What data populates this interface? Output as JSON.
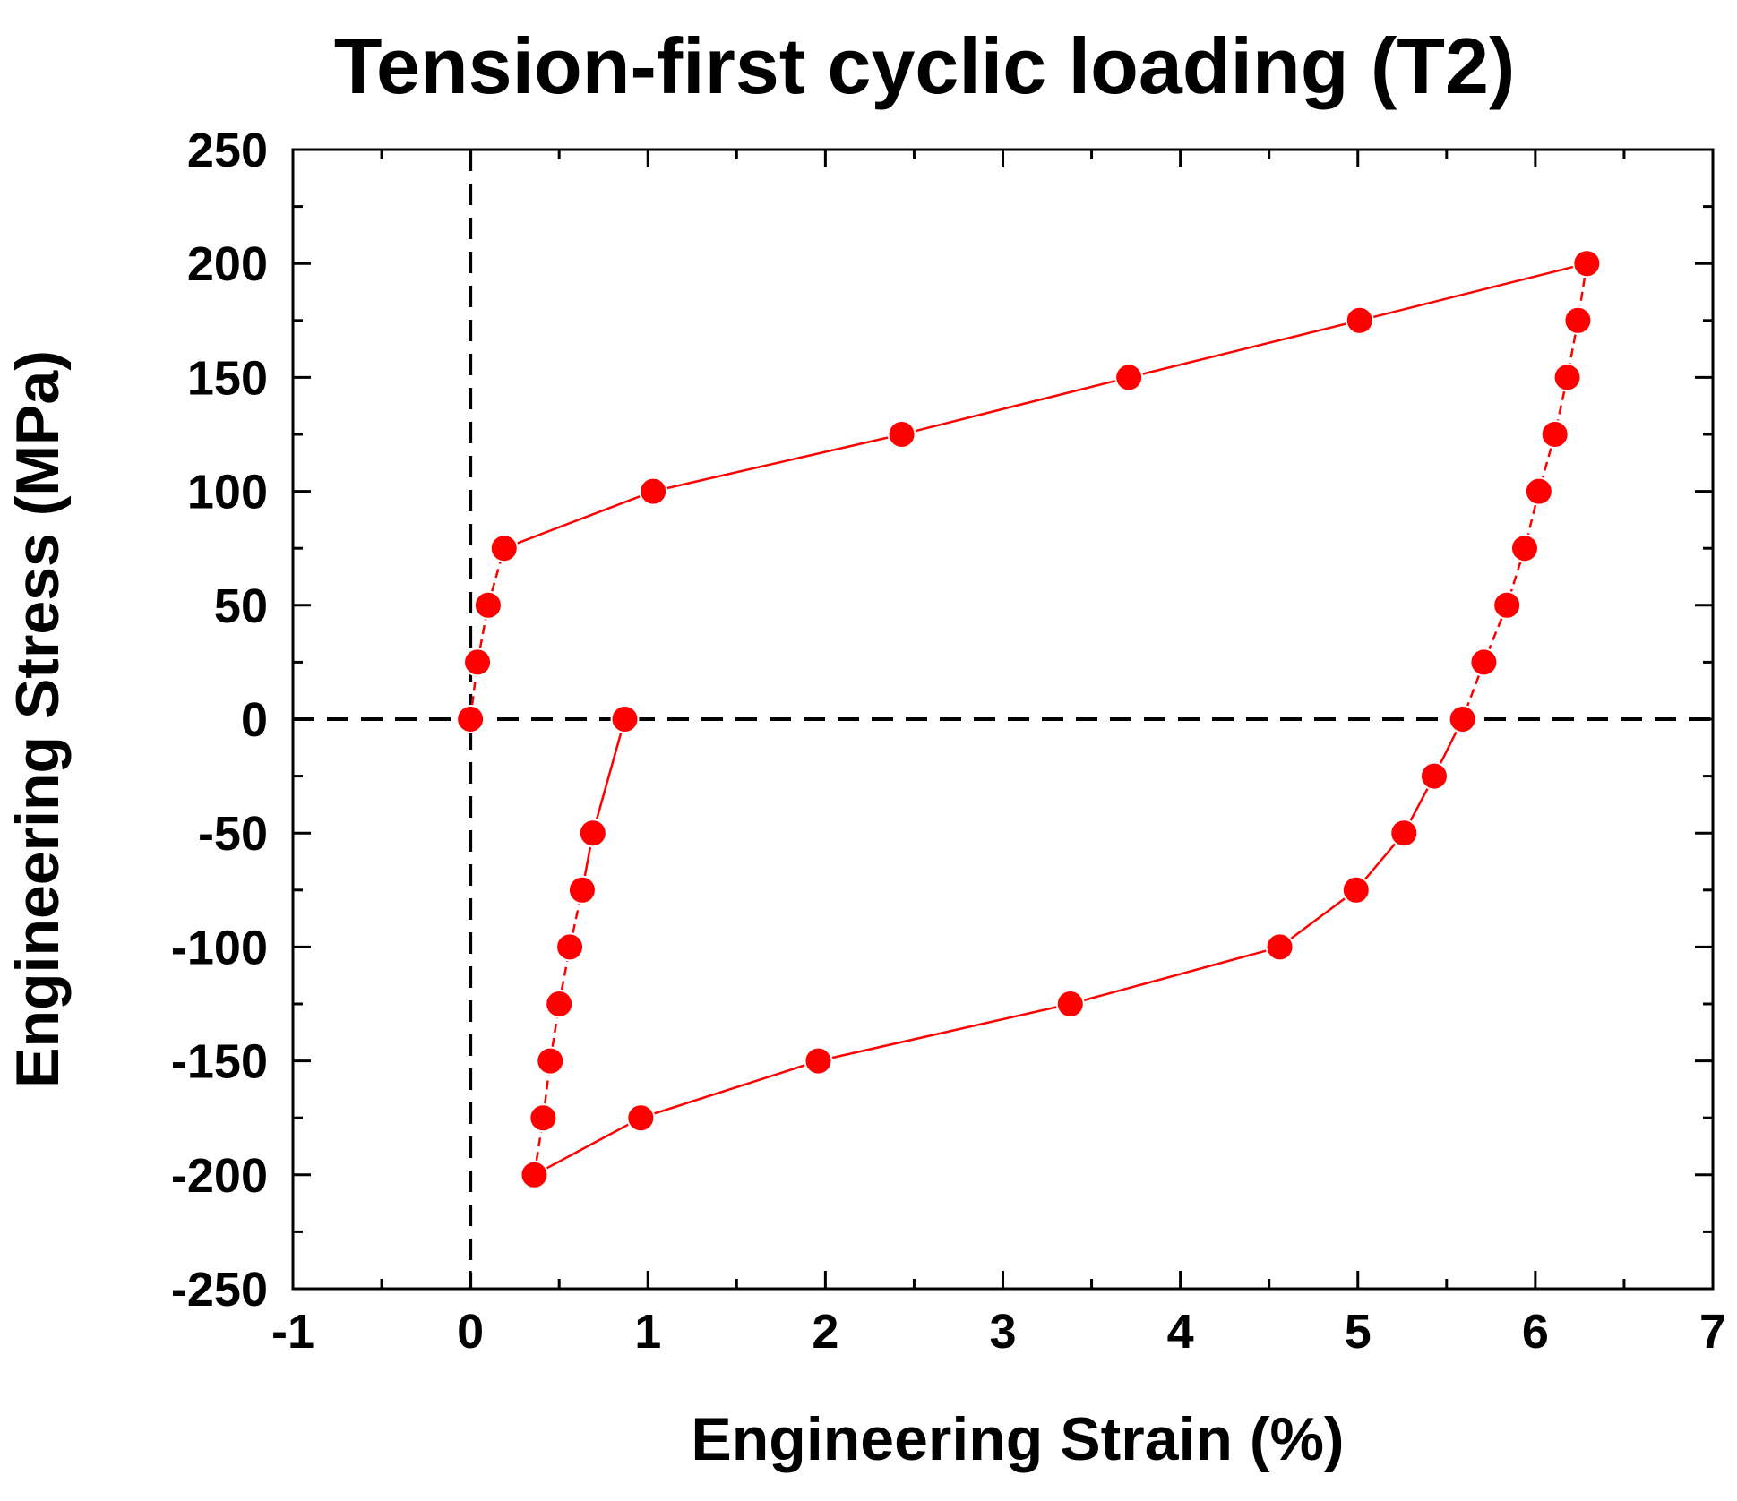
{
  "chart_data": {
    "type": "scatter",
    "title": "Tension-first cyclic loading (T2)",
    "xlabel": "Engineering Strain (%)",
    "ylabel": "Engineering Stress (MPa)",
    "xlim": [
      -1,
      7
    ],
    "ylim": [
      -250,
      250
    ],
    "xticks": [
      -1,
      0,
      1,
      2,
      3,
      4,
      5,
      6,
      7
    ],
    "yticks": [
      -250,
      -200,
      -150,
      -100,
      -50,
      0,
      50,
      100,
      150,
      200,
      250
    ],
    "reference_lines": {
      "x": 0,
      "y": 0,
      "style": "dashed"
    },
    "series": [
      {
        "name": "T2",
        "color": "#ff0000",
        "x": [
          0.0,
          0.04,
          0.1,
          0.19,
          1.03,
          2.43,
          3.71,
          5.01,
          6.29,
          6.24,
          6.18,
          6.11,
          6.02,
          5.94,
          5.84,
          5.71,
          5.59,
          5.43,
          5.26,
          4.99,
          4.56,
          3.38,
          1.96,
          0.96,
          0.36,
          0.41,
          0.45,
          0.5,
          0.56,
          0.63,
          0.69,
          0.87
        ],
        "y": [
          0,
          25,
          50,
          75,
          100,
          125,
          150,
          175,
          200,
          175,
          150,
          125,
          100,
          75,
          50,
          25,
          0,
          -25,
          -50,
          -75,
          -100,
          -125,
          -150,
          -175,
          -200,
          -175,
          -150,
          -125,
          -100,
          -75,
          -50,
          0
        ],
        "segment_styles": [
          "dashed",
          "dashed",
          "dashed",
          "solid",
          "solid",
          "solid",
          "solid",
          "solid",
          "dashed",
          "dashed",
          "dashed",
          "dashed",
          "dashed",
          "dashed",
          "dashed",
          "dashed",
          "solid",
          "solid",
          "solid",
          "solid",
          "solid",
          "solid",
          "solid",
          "solid",
          "dashed",
          "dashed",
          "dashed",
          "dashed",
          "dashed",
          "solid",
          "solid"
        ]
      }
    ]
  }
}
